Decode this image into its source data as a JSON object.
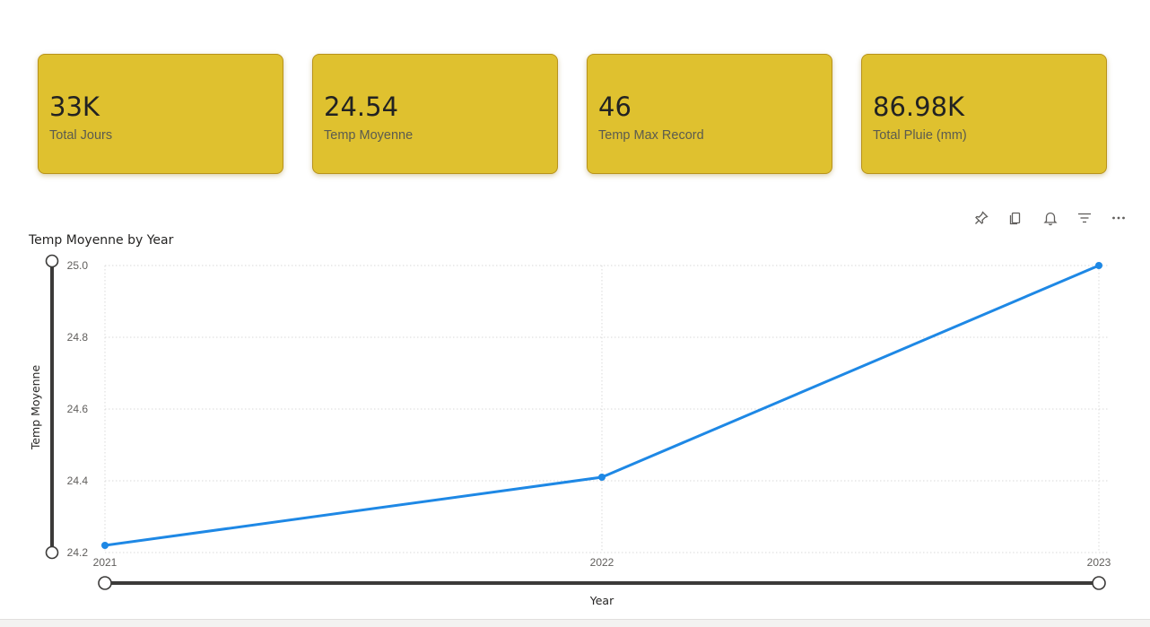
{
  "kpis": [
    {
      "value": "33K",
      "label": "Total Jours"
    },
    {
      "value": "24.54",
      "label": "Temp Moyenne"
    },
    {
      "value": "46",
      "label": "Temp Max Record"
    },
    {
      "value": "86.98K",
      "label": "Total Pluie (mm)"
    }
  ],
  "colors": {
    "card_background": "#dfc12f",
    "card_border": "#b8931b",
    "line": "#1e88e5",
    "slider": "#3b3a39"
  },
  "toolbar": {
    "icons": [
      "pin-icon",
      "copy-icon",
      "bell-icon",
      "filter-icon",
      "more-options-icon"
    ]
  },
  "chart_data": {
    "type": "line",
    "title": "Temp Moyenne by Year",
    "xlabel": "Year",
    "ylabel": "Temp Moyenne",
    "categories": [
      "2021",
      "2022",
      "2023"
    ],
    "series": [
      {
        "values": [
          24.22,
          24.41,
          25.0
        ]
      }
    ],
    "ylim": [
      24.2,
      25.0
    ],
    "yticks": [
      "24.2",
      "24.4",
      "24.6",
      "24.8",
      "25.0"
    ],
    "grid": true,
    "legend": "none"
  }
}
